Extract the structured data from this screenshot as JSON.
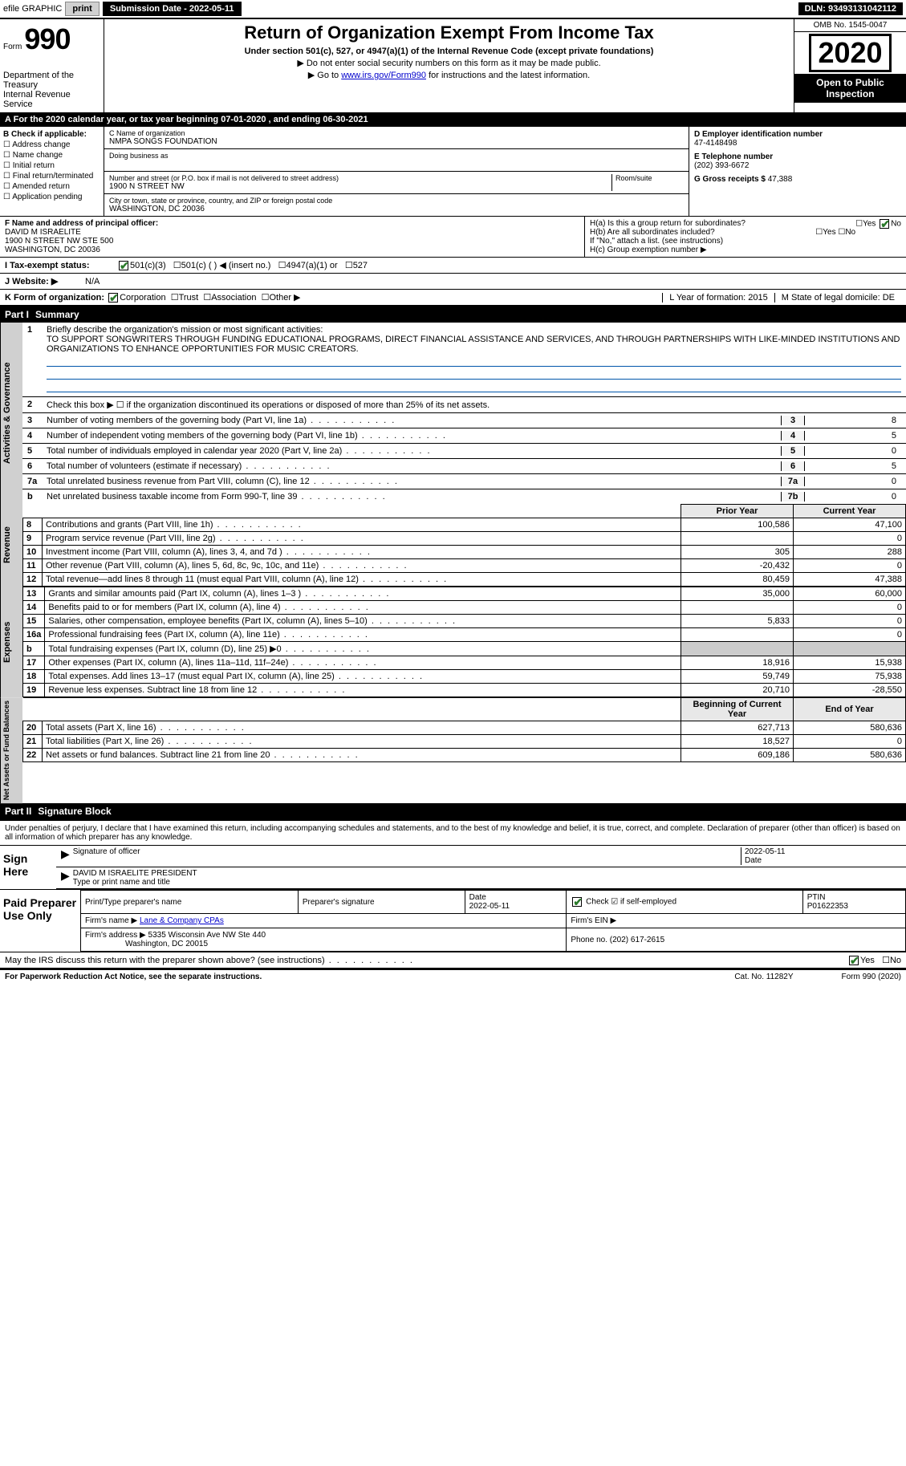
{
  "topbar": {
    "efile": "efile GRAPHIC",
    "print": "print",
    "submission_label": "Submission Date - ",
    "submission_date": "2022-05-11",
    "dln_label": "DLN: ",
    "dln": "93493131042112"
  },
  "header": {
    "form_prefix": "Form",
    "form_number": "990",
    "dept1": "Department of the Treasury",
    "dept2": "Internal Revenue Service",
    "title": "Return of Organization Exempt From Income Tax",
    "subtitle": "Under section 501(c), 527, or 4947(a)(1) of the Internal Revenue Code (except private foundations)",
    "instr1": "▶ Do not enter social security numbers on this form as it may be made public.",
    "instr2_pre": "▶ Go to ",
    "instr2_link": "www.irs.gov/Form990",
    "instr2_post": " for instructions and the latest information.",
    "omb": "OMB No. 1545-0047",
    "year": "2020",
    "open1": "Open to Public",
    "open2": "Inspection"
  },
  "period": "For the 2020 calendar year, or tax year beginning 07-01-2020   , and ending 06-30-2021",
  "section_b": {
    "label": "B Check if applicable:",
    "opts": [
      "Address change",
      "Name change",
      "Initial return",
      "Final return/terminated",
      "Amended return",
      "Application pending"
    ]
  },
  "section_c": {
    "name_label": "C Name of organization",
    "name": "NMPA SONGS FOUNDATION",
    "dba_label": "Doing business as",
    "addr_label": "Number and street (or P.O. box if mail is not delivered to street address)",
    "room_label": "Room/suite",
    "addr": "1900 N STREET NW",
    "city_label": "City or town, state or province, country, and ZIP or foreign postal code",
    "city": "WASHINGTON, DC  20036"
  },
  "section_d": {
    "label": "D Employer identification number",
    "val": "47-4148498"
  },
  "section_e": {
    "label": "E Telephone number",
    "val": "(202) 393-6672"
  },
  "section_g": {
    "label": "G Gross receipts $",
    "val": "47,388"
  },
  "section_f": {
    "label": "F  Name and address of principal officer:",
    "name": "DAVID M ISRAELITE",
    "addr1": "1900 N STREET NW STE 500",
    "addr2": "WASHINGTON, DC  20036"
  },
  "section_h": {
    "ha": "H(a)  Is this a group return for subordinates?",
    "hb": "H(b)  Are all subordinates included?",
    "hb_note": "If \"No,\" attach a list. (see instructions)",
    "hc": "H(c)  Group exemption number ▶",
    "yes": "Yes",
    "no": "No"
  },
  "status_row": {
    "label": "I   Tax-exempt status:",
    "o1": "501(c)(3)",
    "o2": "501(c) (  ) ◀ (insert no.)",
    "o3": "4947(a)(1) or",
    "o4": "527"
  },
  "web_row": {
    "label": "J   Website: ▶",
    "val": "N/A"
  },
  "k_row": {
    "label": "K Form of organization:",
    "o1": "Corporation",
    "o2": "Trust",
    "o3": "Association",
    "o4": "Other ▶",
    "l": "L Year of formation: 2015",
    "m": "M State of legal domicile: DE"
  },
  "part1": {
    "num": "Part I",
    "title": "Summary"
  },
  "mission": {
    "num": "1",
    "label": "Briefly describe the organization's mission or most significant activities:",
    "text": "TO SUPPORT SONGWRITERS THROUGH FUNDING EDUCATIONAL PROGRAMS, DIRECT FINANCIAL ASSISTANCE AND SERVICES, AND THROUGH PARTNERSHIPS WITH LIKE-MINDED INSTITUTIONS AND ORGANIZATIONS TO ENHANCE OPPORTUNITIES FOR MUSIC CREATORS."
  },
  "line2": {
    "num": "2",
    "text": "Check this box ▶ ☐  if the organization discontinued its operations or disposed of more than 25% of its net assets."
  },
  "gov_lines": [
    {
      "n": "3",
      "t": "Number of voting members of the governing body (Part VI, line 1a)",
      "b": "3",
      "v": "8"
    },
    {
      "n": "4",
      "t": "Number of independent voting members of the governing body (Part VI, line 1b)",
      "b": "4",
      "v": "5"
    },
    {
      "n": "5",
      "t": "Total number of individuals employed in calendar year 2020 (Part V, line 2a)",
      "b": "5",
      "v": "0"
    },
    {
      "n": "6",
      "t": "Total number of volunteers (estimate if necessary)",
      "b": "6",
      "v": "5"
    },
    {
      "n": "7a",
      "t": "Total unrelated business revenue from Part VIII, column (C), line 12",
      "b": "7a",
      "v": "0"
    },
    {
      "n": "b",
      "t": "Net unrelated business taxable income from Form 990-T, line 39",
      "b": "7b",
      "v": "0"
    }
  ],
  "fin_hdr": {
    "prior": "Prior Year",
    "current": "Current Year"
  },
  "revenue": [
    {
      "n": "8",
      "t": "Contributions and grants (Part VIII, line 1h)",
      "p": "100,586",
      "c": "47,100"
    },
    {
      "n": "9",
      "t": "Program service revenue (Part VIII, line 2g)",
      "p": "",
      "c": "0"
    },
    {
      "n": "10",
      "t": "Investment income (Part VIII, column (A), lines 3, 4, and 7d )",
      "p": "305",
      "c": "288"
    },
    {
      "n": "11",
      "t": "Other revenue (Part VIII, column (A), lines 5, 6d, 8c, 9c, 10c, and 11e)",
      "p": "-20,432",
      "c": "0"
    },
    {
      "n": "12",
      "t": "Total revenue—add lines 8 through 11 (must equal Part VIII, column (A), line 12)",
      "p": "80,459",
      "c": "47,388"
    }
  ],
  "expenses": [
    {
      "n": "13",
      "t": "Grants and similar amounts paid (Part IX, column (A), lines 1–3 )",
      "p": "35,000",
      "c": "60,000"
    },
    {
      "n": "14",
      "t": "Benefits paid to or for members (Part IX, column (A), line 4)",
      "p": "",
      "c": "0"
    },
    {
      "n": "15",
      "t": "Salaries, other compensation, employee benefits (Part IX, column (A), lines 5–10)",
      "p": "5,833",
      "c": "0"
    },
    {
      "n": "16a",
      "t": "Professional fundraising fees (Part IX, column (A), line 11e)",
      "p": "",
      "c": "0"
    },
    {
      "n": "b",
      "t": "Total fundraising expenses (Part IX, column (D), line 25) ▶0",
      "p": "GRAY",
      "c": "GRAY"
    },
    {
      "n": "17",
      "t": "Other expenses (Part IX, column (A), lines 11a–11d, 11f–24e)",
      "p": "18,916",
      "c": "15,938"
    },
    {
      "n": "18",
      "t": "Total expenses. Add lines 13–17 (must equal Part IX, column (A), line 25)",
      "p": "59,749",
      "c": "75,938"
    },
    {
      "n": "19",
      "t": "Revenue less expenses. Subtract line 18 from line 12",
      "p": "20,710",
      "c": "-28,550"
    }
  ],
  "net_hdr": {
    "begin": "Beginning of Current Year",
    "end": "End of Year"
  },
  "net": [
    {
      "n": "20",
      "t": "Total assets (Part X, line 16)",
      "p": "627,713",
      "c": "580,636"
    },
    {
      "n": "21",
      "t": "Total liabilities (Part X, line 26)",
      "p": "18,527",
      "c": "0"
    },
    {
      "n": "22",
      "t": "Net assets or fund balances. Subtract line 21 from line 20",
      "p": "609,186",
      "c": "580,636"
    }
  ],
  "side_labels": {
    "gov": "Activities & Governance",
    "rev": "Revenue",
    "exp": "Expenses",
    "net": "Net Assets or Fund Balances"
  },
  "part2": {
    "num": "Part II",
    "title": "Signature Block"
  },
  "sig": {
    "intro": "Under penalties of perjury, I declare that I have examined this return, including accompanying schedules and statements, and to the best of my knowledge and belief, it is true, correct, and complete. Declaration of preparer (other than officer) is based on all information of which preparer has any knowledge.",
    "here": "Sign Here",
    "officer_sig": "Signature of officer",
    "date": "Date",
    "date_val": "2022-05-11",
    "name": "DAVID M ISRAELITE PRESIDENT",
    "name_label": "Type or print name and title"
  },
  "prep": {
    "side": "Paid Preparer Use Only",
    "h1": "Print/Type preparer's name",
    "h2": "Preparer's signature",
    "h3": "Date",
    "h4": "Check ☑ if self-employed",
    "h5": "PTIN",
    "date": "2022-05-11",
    "ptin": "P01622353",
    "firm_label": "Firm's name   ▶",
    "firm": "Lane & Company CPAs",
    "ein_label": "Firm's EIN ▶",
    "addr_label": "Firm's address ▶",
    "addr": "5335 Wisconsin Ave NW Ste 440",
    "addr2": "Washington, DC  20015",
    "phone_label": "Phone no.",
    "phone": "(202) 617-2615"
  },
  "discuss": {
    "q": "May the IRS discuss this return with the preparer shown above? (see instructions)",
    "yes": "Yes",
    "no": "No"
  },
  "footer": {
    "l": "For Paperwork Reduction Act Notice, see the separate instructions.",
    "cat": "Cat. No. 11282Y",
    "r": "Form 990 (2020)"
  }
}
